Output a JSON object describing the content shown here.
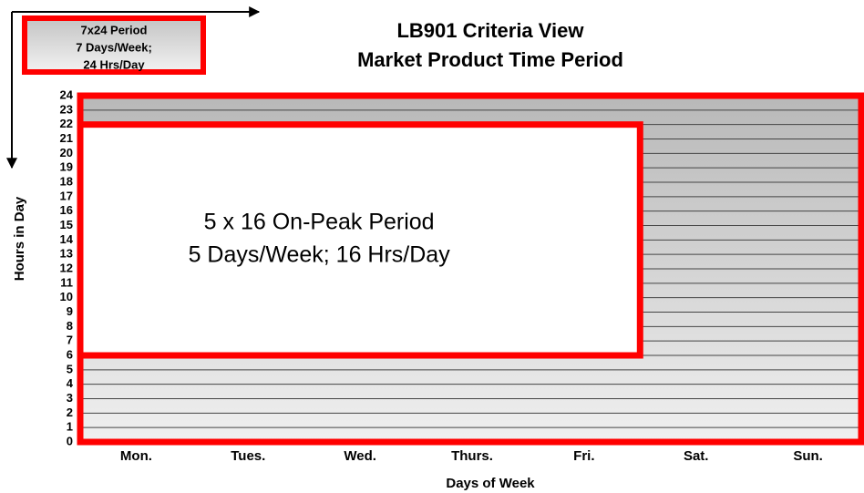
{
  "chart_data": {
    "type": "period",
    "title": [
      "LB901 Criteria View",
      "Market Product Time Period"
    ],
    "xlabel": "Days of Week",
    "ylabel": "Hours in Day",
    "categories": [
      "Mon.",
      "Tues.",
      "Wed.",
      "Thurs.",
      "Fri.",
      "Sat.",
      "Sun."
    ],
    "ylim": [
      0,
      24
    ],
    "yticks": [
      0,
      1,
      2,
      3,
      4,
      5,
      6,
      7,
      8,
      9,
      10,
      11,
      12,
      13,
      14,
      15,
      16,
      17,
      18,
      19,
      20,
      21,
      22,
      23,
      24
    ],
    "grid": true,
    "color": "#ff0000",
    "regions": [
      {
        "text": [
          "5 x 16 On-Peak Period",
          "5 Days/Week; 16 Hrs/Day"
        ],
        "hours": [
          6,
          22
        ],
        "days": 5
      },
      {
        "text": [
          "7x24 Period",
          "7 Days/Week;",
          "24 Hrs/Day"
        ],
        "hours": [
          0,
          24
        ],
        "days": 7
      }
    ]
  }
}
